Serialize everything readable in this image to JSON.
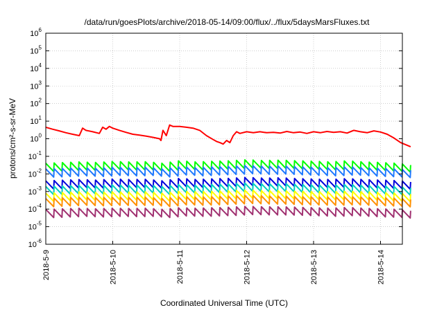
{
  "chart_data": {
    "type": "line",
    "title": "/data/run/goesPlots/archive/2018-05-14/09:00/flux/../flux/5daysMarsFluxes.txt",
    "xlabel": "Coordinated Universal Time (UTC)",
    "ylabel": "protons/cm²-s-sr-MeV",
    "yscale": "log",
    "ylim": [
      1e-06,
      1000000.0
    ],
    "xlim": [
      "2018-05-09 00:00",
      "2018-05-14 11:00"
    ],
    "grid": true,
    "legend": "none",
    "x_ticks": [
      "2018-5-9",
      "2018-5-10",
      "2018-5-11",
      "2018-5-12",
      "2018-5-13",
      "2018-5-14"
    ],
    "y_ticks": [
      {
        "exp": -6,
        "label": "10",
        "sup": "-6"
      },
      {
        "exp": -5,
        "label": "10",
        "sup": "-5"
      },
      {
        "exp": -4,
        "label": "10",
        "sup": "-4"
      },
      {
        "exp": -3,
        "label": "10",
        "sup": "-3"
      },
      {
        "exp": -2,
        "label": "10",
        "sup": "-2"
      },
      {
        "exp": -1,
        "label": "10",
        "sup": "-1"
      },
      {
        "exp": 0,
        "label": "10",
        "sup": "0"
      },
      {
        "exp": 1,
        "label": "10",
        "sup": "1"
      },
      {
        "exp": 2,
        "label": "10",
        "sup": "2"
      },
      {
        "exp": 3,
        "label": "10",
        "sup": "3"
      },
      {
        "exp": 4,
        "label": "10",
        "sup": "4"
      },
      {
        "exp": 5,
        "label": "10",
        "sup": "5"
      },
      {
        "exp": 6,
        "label": "10",
        "sup": "6"
      }
    ],
    "series": [
      {
        "color": "#ff0000",
        "x": [
          0,
          0.1,
          0.2,
          0.3,
          0.4,
          0.5,
          0.55,
          0.6,
          0.7,
          0.8,
          0.85,
          0.9,
          0.95,
          1.0,
          1.1,
          1.2,
          1.3,
          1.4,
          1.5,
          1.6,
          1.7,
          1.72,
          1.75,
          1.8,
          1.85,
          1.9,
          2.0,
          2.1,
          2.2,
          2.3,
          2.4,
          2.5,
          2.55,
          2.6,
          2.65,
          2.7,
          2.75,
          2.8,
          2.85,
          2.9,
          3.0,
          3.1,
          3.2,
          3.3,
          3.4,
          3.5,
          3.6,
          3.7,
          3.8,
          3.9,
          4.0,
          4.1,
          4.2,
          4.3,
          4.4,
          4.5,
          4.6,
          4.7,
          4.8,
          4.9,
          5.0,
          5.1,
          5.2,
          5.3,
          5.45
        ],
        "values": [
          4.5,
          3.5,
          2.8,
          2.2,
          1.8,
          1.5,
          4.0,
          3.0,
          2.5,
          2.0,
          4.5,
          3.5,
          5.0,
          4.0,
          3.0,
          2.3,
          1.8,
          1.6,
          1.4,
          1.2,
          1.0,
          0.8,
          3.0,
          1.5,
          6.0,
          5.0,
          5.0,
          4.5,
          4.0,
          3.0,
          1.5,
          0.9,
          0.7,
          0.6,
          0.5,
          0.8,
          0.6,
          1.5,
          2.5,
          2.0,
          2.5,
          2.2,
          2.5,
          2.2,
          2.3,
          2.1,
          2.6,
          2.2,
          2.4,
          2.0,
          2.5,
          2.2,
          2.6,
          2.3,
          2.5,
          2.1,
          3.0,
          2.5,
          2.2,
          2.8,
          2.4,
          1.8,
          1.1,
          0.6,
          0.35
        ]
      },
      {
        "color": "#00ff00",
        "x": [
          0,
          0.5,
          0.75,
          1.0,
          1.25,
          1.5,
          1.75,
          2.0,
          2.25,
          2.5,
          2.75,
          3.0,
          3.25,
          3.5,
          3.75,
          4.0,
          4.25,
          4.5,
          4.75,
          5.0,
          5.25,
          5.45
        ],
        "values": [
          0.025,
          0.03,
          0.028,
          0.032,
          0.03,
          0.031,
          0.025,
          0.035,
          0.03,
          0.033,
          0.035,
          0.04,
          0.036,
          0.038,
          0.035,
          0.033,
          0.03,
          0.035,
          0.03,
          0.028,
          0.025,
          0.02
        ]
      },
      {
        "color": "#1e78ff",
        "x": [
          0,
          0.5,
          0.75,
          1.0,
          1.25,
          1.5,
          1.75,
          2.0,
          2.25,
          2.5,
          2.75,
          3.0,
          3.25,
          3.5,
          3.75,
          4.0,
          4.25,
          4.5,
          4.75,
          5.0,
          5.25,
          5.45
        ],
        "values": [
          0.012,
          0.014,
          0.013,
          0.015,
          0.014,
          0.015,
          0.012,
          0.016,
          0.014,
          0.016,
          0.017,
          0.019,
          0.017,
          0.018,
          0.016,
          0.015,
          0.014,
          0.016,
          0.014,
          0.013,
          0.012,
          0.01
        ]
      },
      {
        "color": "#0000dd",
        "x": [
          0,
          0.5,
          0.75,
          1.0,
          1.25,
          1.5,
          1.75,
          2.0,
          2.25,
          2.5,
          2.75,
          3.0,
          3.25,
          3.5,
          3.75,
          4.0,
          4.25,
          4.5,
          4.75,
          5.0,
          5.25,
          5.45
        ],
        "values": [
          0.0025,
          0.003,
          0.0028,
          0.0032,
          0.003,
          0.0031,
          0.0025,
          0.0035,
          0.003,
          0.0033,
          0.0035,
          0.004,
          0.0036,
          0.0038,
          0.0034,
          0.0032,
          0.003,
          0.0034,
          0.003,
          0.0028,
          0.0026,
          0.0022
        ]
      },
      {
        "color": "#00d0c0",
        "x": [
          0,
          0.5,
          0.75,
          1.0,
          1.25,
          1.5,
          1.75,
          2.0,
          2.25,
          2.5,
          2.75,
          3.0,
          3.25,
          3.5,
          3.75,
          4.0,
          4.25,
          4.5,
          4.75,
          5.0,
          5.25,
          5.45
        ],
        "values": [
          0.0012,
          0.0014,
          0.0013,
          0.0015,
          0.0014,
          0.0015,
          0.0012,
          0.0016,
          0.0014,
          0.0016,
          0.0017,
          0.0019,
          0.0017,
          0.0018,
          0.0016,
          0.0015,
          0.0014,
          0.0016,
          0.0014,
          0.0013,
          0.0012,
          0.001
        ]
      },
      {
        "color": "#ffff00",
        "x": [
          0,
          0.5,
          0.75,
          1.0,
          1.25,
          1.5,
          1.75,
          2.0,
          2.25,
          2.5,
          2.75,
          3.0,
          3.25,
          3.5,
          3.75,
          4.0,
          4.25,
          4.5,
          4.75,
          5.0,
          5.25,
          5.45
        ],
        "values": [
          0.0005,
          0.0006,
          0.00055,
          0.0006,
          0.00058,
          0.0006,
          0.0005,
          0.00065,
          0.0006,
          0.00065,
          0.0007,
          0.00075,
          0.0007,
          0.0007,
          0.00065,
          0.00062,
          0.0006,
          0.00065,
          0.0006,
          0.00055,
          0.0005,
          0.00045
        ]
      },
      {
        "color": "#ff9000",
        "x": [
          0,
          0.5,
          0.75,
          1.0,
          1.25,
          1.5,
          1.75,
          2.0,
          2.25,
          2.5,
          2.75,
          3.0,
          3.25,
          3.5,
          3.75,
          4.0,
          4.25,
          4.5,
          4.75,
          5.0,
          5.25,
          5.45
        ],
        "values": [
          0.00025,
          0.0003,
          0.00028,
          0.0003,
          0.00029,
          0.0003,
          0.00025,
          0.00032,
          0.0003,
          0.00032,
          0.00035,
          0.00038,
          0.00035,
          0.00035,
          0.00032,
          0.00031,
          0.0003,
          0.00032,
          0.0003,
          0.00028,
          0.00026,
          0.00022
        ]
      },
      {
        "color": "#a03070",
        "x": [
          0,
          0.5,
          0.75,
          1.0,
          1.25,
          1.5,
          1.75,
          2.0,
          2.25,
          2.5,
          2.75,
          3.0,
          3.25,
          3.5,
          3.75,
          4.0,
          4.25,
          4.5,
          4.75,
          5.0,
          5.25,
          5.45
        ],
        "values": [
          6e-05,
          7e-05,
          6.5e-05,
          7e-05,
          6.8e-05,
          7e-05,
          6e-05,
          7.5e-05,
          7e-05,
          7.5e-05,
          8e-05,
          9e-05,
          8.5e-05,
          8.5e-05,
          8e-05,
          7.5e-05,
          7e-05,
          7.8e-05,
          7e-05,
          6.5e-05,
          6e-05,
          5e-05
        ]
      }
    ]
  }
}
